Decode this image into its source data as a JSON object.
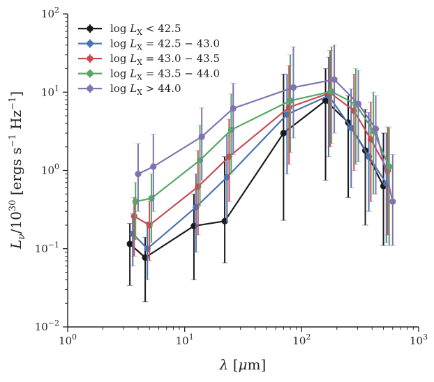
{
  "chart_data": {
    "type": "line",
    "title": "",
    "xlabel": "λ [μm]",
    "ylabel": "Lν/10^30 [ergs s^-1 Hz^-1]",
    "xscale": "log",
    "yscale": "log",
    "xlim": [
      1,
      1000
    ],
    "ylim": [
      0.01,
      100
    ],
    "x_ticks": [
      {
        "value": 1,
        "base": "10",
        "exp": "0"
      },
      {
        "value": 10,
        "base": "10",
        "exp": "1"
      },
      {
        "value": 100,
        "base": "10",
        "exp": "2"
      },
      {
        "value": 1000,
        "base": "10",
        "exp": "3"
      }
    ],
    "y_ticks": [
      {
        "value": 0.01,
        "base": "10",
        "exp": "−2"
      },
      {
        "value": 0.1,
        "base": "10",
        "exp": "−1"
      },
      {
        "value": 1,
        "base": "10",
        "exp": "0"
      },
      {
        "value": 10,
        "base": "10",
        "exp": "1"
      },
      {
        "value": 100,
        "base": "10",
        "exp": "2"
      }
    ],
    "legend_position": "top-left",
    "series": [
      {
        "name": "log L_X < 42.5",
        "legend": {
          "prefix": "log ",
          "sym": "L",
          "sub": "X",
          "rest": " < 42.5"
        },
        "color": "#1a1a1a",
        "points": [
          {
            "x": 3.4,
            "y": 0.115,
            "lo": 0.034,
            "hi": 0.21
          },
          {
            "x": 4.6,
            "y": 0.077,
            "lo": 0.021,
            "hi": 0.14
          },
          {
            "x": 12,
            "y": 0.195,
            "lo": 0.04,
            "hi": 0.5
          },
          {
            "x": 22,
            "y": 0.225,
            "lo": 0.066,
            "hi": 1.5
          },
          {
            "x": 70,
            "y": 3.0,
            "lo": 0.23,
            "hi": 17
          },
          {
            "x": 160,
            "y": 7.8,
            "lo": 0.75,
            "hi": 20
          },
          {
            "x": 250,
            "y": 4.1,
            "lo": 0.45,
            "hi": 9
          },
          {
            "x": 350,
            "y": 1.8,
            "lo": 0.2,
            "hi": 6
          },
          {
            "x": 500,
            "y": 0.63,
            "lo": 0.11,
            "hi": 3
          }
        ]
      },
      {
        "name": "log L_X = 42.5 − 43.0",
        "legend": {
          "prefix": "log ",
          "sym": "L",
          "sub": "X",
          "rest": " = 42.5 − 43.0"
        },
        "color": "#4c72b0",
        "points": [
          {
            "x": 3.6,
            "y": 0.155,
            "lo": 0.06,
            "hi": 0.28
          },
          {
            "x": 4.8,
            "y": 0.1,
            "lo": 0.04,
            "hi": 0.22
          },
          {
            "x": 12.5,
            "y": 0.34,
            "lo": 0.09,
            "hi": 0.9
          },
          {
            "x": 23,
            "y": 0.82,
            "lo": 0.22,
            "hi": 2.8
          },
          {
            "x": 75,
            "y": 5.2,
            "lo": 0.9,
            "hi": 17
          },
          {
            "x": 170,
            "y": 9.0,
            "lo": 1.5,
            "hi": 28
          },
          {
            "x": 265,
            "y": 3.5,
            "lo": 0.6,
            "hi": 11
          },
          {
            "x": 375,
            "y": 1.5,
            "lo": 0.3,
            "hi": 5.5
          },
          {
            "x": 530,
            "y": 0.68,
            "lo": 0.12,
            "hi": 3.0
          }
        ]
      },
      {
        "name": "log L_X = 43.0 − 43.5",
        "legend": {
          "prefix": "log ",
          "sym": "L",
          "sub": "X",
          "rest": " = 43.0 − 43.5"
        },
        "color": "#c44e52",
        "points": [
          {
            "x": 3.7,
            "y": 0.26,
            "lo": 0.08,
            "hi": 0.45
          },
          {
            "x": 5.0,
            "y": 0.2,
            "lo": 0.07,
            "hi": 0.4
          },
          {
            "x": 13,
            "y": 0.62,
            "lo": 0.15,
            "hi": 1.8
          },
          {
            "x": 24,
            "y": 1.5,
            "lo": 0.4,
            "hi": 4.5
          },
          {
            "x": 78,
            "y": 6.4,
            "lo": 1.2,
            "hi": 22
          },
          {
            "x": 175,
            "y": 9.8,
            "lo": 2.0,
            "hi": 34
          },
          {
            "x": 280,
            "y": 5.8,
            "lo": 1.0,
            "hi": 17
          },
          {
            "x": 390,
            "y": 2.5,
            "lo": 0.4,
            "hi": 7.5
          },
          {
            "x": 545,
            "y": 1.0,
            "lo": 0.15,
            "hi": 3.6
          }
        ]
      },
      {
        "name": "log L_X = 43.5 − 44.0",
        "legend": {
          "prefix": "log ",
          "sym": "L",
          "sub": "X",
          "rest": " = 43.5 − 44.0"
        },
        "color": "#55a868",
        "points": [
          {
            "x": 3.8,
            "y": 0.4,
            "lo": 0.13,
            "hi": 0.7
          },
          {
            "x": 5.2,
            "y": 0.44,
            "lo": 0.12,
            "hi": 0.9
          },
          {
            "x": 13.5,
            "y": 1.35,
            "lo": 0.35,
            "hi": 3.8
          },
          {
            "x": 25,
            "y": 3.3,
            "lo": 0.9,
            "hi": 9.5
          },
          {
            "x": 80,
            "y": 7.8,
            "lo": 1.7,
            "hi": 30
          },
          {
            "x": 180,
            "y": 10.2,
            "lo": 2.2,
            "hi": 38
          },
          {
            "x": 290,
            "y": 7.0,
            "lo": 1.2,
            "hi": 20
          },
          {
            "x": 410,
            "y": 3.2,
            "lo": 0.5,
            "hi": 10
          },
          {
            "x": 560,
            "y": 1.12,
            "lo": 0.11,
            "hi": 3.5
          }
        ]
      },
      {
        "name": "log L_X > 44.0",
        "legend": {
          "prefix": "log ",
          "sym": "L",
          "sub": "X",
          "rest": " > 44.0"
        },
        "color": "#8172b2",
        "points": [
          {
            "x": 4.0,
            "y": 0.9,
            "lo": 0.3,
            "hi": 2.2
          },
          {
            "x": 5.4,
            "y": 1.12,
            "lo": 0.3,
            "hi": 2.9
          },
          {
            "x": 14,
            "y": 2.7,
            "lo": 0.75,
            "hi": 6.3
          },
          {
            "x": 26,
            "y": 6.2,
            "lo": 1.6,
            "hi": 13
          },
          {
            "x": 85,
            "y": 11.5,
            "lo": 2.6,
            "hi": 38
          },
          {
            "x": 190,
            "y": 14.5,
            "lo": 3.0,
            "hi": 40
          },
          {
            "x": 305,
            "y": 7.1,
            "lo": 1.3,
            "hi": 19
          },
          {
            "x": 430,
            "y": 3.4,
            "lo": 0.5,
            "hi": 9
          },
          {
            "x": 600,
            "y": 0.4,
            "lo": 0.11,
            "hi": 1.6
          }
        ]
      }
    ]
  }
}
